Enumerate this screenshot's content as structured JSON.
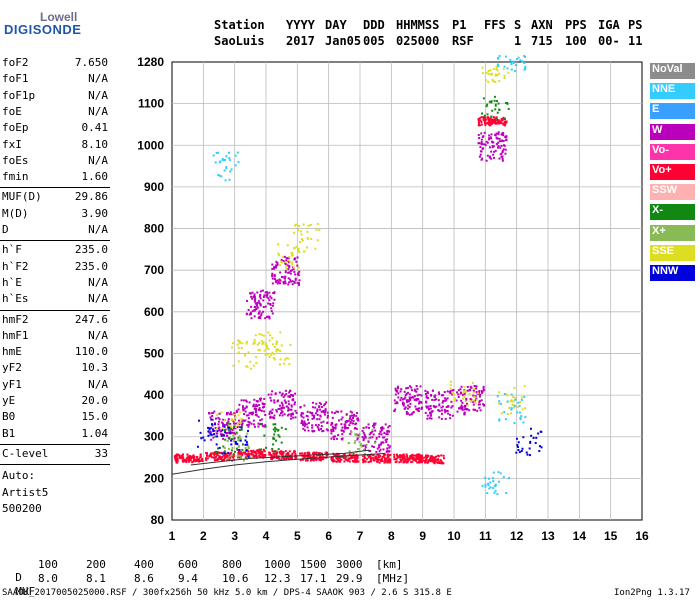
{
  "logo": {
    "line1": "Lowell",
    "line2": "DIGISONDE"
  },
  "header": {
    "cols": [
      {
        "k": "Station",
        "v": "SaoLuis"
      },
      {
        "k": "YYYY",
        "v": "2017"
      },
      {
        "k": "DAY",
        "v": "Jan05"
      },
      {
        "k": "DDD",
        "v": "005"
      },
      {
        "k": "HHMMSS",
        "v": "025000"
      },
      {
        "k": "P1",
        "v": "RSF"
      },
      {
        "k": "FFS",
        "v": ""
      },
      {
        "k": "S",
        "v": "1"
      },
      {
        "k": "AXN",
        "v": "715"
      },
      {
        "k": "PPS",
        "v": "100"
      },
      {
        "k": "IGA",
        "v": "00-"
      },
      {
        "k": "PS",
        "v": "11"
      }
    ]
  },
  "params": {
    "groupA": [
      {
        "k": "foF2",
        "v": "7.650"
      },
      {
        "k": "foF1",
        "v": "N/A"
      },
      {
        "k": "foF1p",
        "v": "N/A"
      },
      {
        "k": "foE",
        "v": "N/A"
      },
      {
        "k": "foEp",
        "v": "0.41"
      },
      {
        "k": "fxI",
        "v": "8.10"
      },
      {
        "k": "foEs",
        "v": "N/A"
      },
      {
        "k": "fmin",
        "v": "1.60"
      }
    ],
    "groupB": [
      {
        "k": "MUF(D)",
        "v": "29.86"
      },
      {
        "k": "M(D)",
        "v": "3.90"
      },
      {
        "k": "D",
        "v": "N/A"
      }
    ],
    "groupC": [
      {
        "k": "h`F",
        "v": "235.0"
      },
      {
        "k": "h`F2",
        "v": "235.0"
      },
      {
        "k": "h`E",
        "v": "N/A"
      },
      {
        "k": "h`Es",
        "v": "N/A"
      }
    ],
    "groupD": [
      {
        "k": "hmF2",
        "v": "247.6"
      },
      {
        "k": "hmF1",
        "v": "N/A"
      },
      {
        "k": "hmE",
        "v": "110.0"
      },
      {
        "k": "yF2",
        "v": "10.3"
      },
      {
        "k": "yF1",
        "v": "N/A"
      },
      {
        "k": "yE",
        "v": "20.0"
      },
      {
        "k": "B0",
        "v": "15.0"
      },
      {
        "k": "B1",
        "v": "1.04"
      }
    ],
    "clevel": {
      "k": "C-level",
      "v": "33"
    },
    "auto": [
      "Auto:",
      "Artist5",
      "500200"
    ]
  },
  "legend": [
    {
      "label": "NoVal",
      "color": "#8c8c8c"
    },
    {
      "label": "NNE",
      "color": "#33ccff"
    },
    {
      "label": "E",
      "color": "#3aa0ff"
    },
    {
      "label": "W",
      "color": "#bb00bb"
    },
    {
      "label": "Vo-",
      "color": "#ff33aa"
    },
    {
      "label": "Vo+",
      "color": "#ff0033"
    },
    {
      "label": "SSW",
      "color": "#ffb0b0"
    },
    {
      "label": "X-",
      "color": "#118811"
    },
    {
      "label": "X+",
      "color": "#88bb55"
    },
    {
      "label": "SSE",
      "color": "#dddd22"
    },
    {
      "label": "NNW",
      "color": "#0000dd"
    }
  ],
  "footer": {
    "row1_label": "D",
    "row1_values": [
      "100",
      "200",
      "400",
      "600",
      "800",
      "1000",
      "1500",
      "3000",
      "[km]"
    ],
    "row2_label": "MUF",
    "row2_values": [
      "8.0",
      "8.1",
      "8.6",
      "9.4",
      "10.6",
      "12.3",
      "17.1",
      "29.9",
      "[MHz]"
    ],
    "bottom_left": "SAAOK_2017005025000.RSF / 300fx256h 50 kHz 5.0 km / DPS-4 SAAOK 903 / 2.6 S 315.8 E",
    "bottom_right": "Ion2Png 1.3.17"
  },
  "chart_data": {
    "type": "scatter",
    "x_ticks": [
      1,
      2,
      3,
      4,
      5,
      6,
      7,
      8,
      9,
      10,
      11,
      12,
      13,
      14,
      15,
      16
    ],
    "y_ticks": [
      80,
      200,
      300,
      400,
      500,
      600,
      700,
      800,
      900,
      1000,
      1100,
      1280
    ],
    "xlim": [
      1,
      16
    ],
    "ylim": [
      80,
      1280
    ],
    "grid": true,
    "legend_position": "right",
    "series": [
      {
        "name": "W",
        "points": [
          [
            2.6,
            330
          ],
          [
            3.5,
            360
          ],
          [
            4.5,
            380
          ],
          [
            5.5,
            350
          ],
          [
            6.5,
            330
          ],
          [
            7.5,
            300
          ],
          [
            8.5,
            390
          ],
          [
            9.5,
            380
          ],
          [
            10.5,
            390
          ],
          [
            11.2,
            1000
          ],
          [
            3.8,
            620
          ],
          [
            4.6,
            700
          ]
        ]
      },
      {
        "name": "Vo+",
        "points": [
          [
            1.5,
            250
          ],
          [
            2.5,
            255
          ],
          [
            3.5,
            262
          ],
          [
            4.5,
            258
          ],
          [
            5.5,
            255
          ],
          [
            6.5,
            252
          ],
          [
            7.5,
            250
          ],
          [
            8.5,
            250
          ],
          [
            9.2,
            248
          ],
          [
            11.2,
            1060
          ]
        ]
      },
      {
        "name": "SSE",
        "points": [
          [
            3.3,
            500
          ],
          [
            4.3,
            510
          ],
          [
            4.8,
            740
          ],
          [
            5.3,
            780
          ],
          [
            2.8,
            330
          ],
          [
            4.0,
            520
          ],
          [
            10.3,
            400
          ],
          [
            11.8,
            390
          ],
          [
            11.3,
            1230
          ]
        ]
      },
      {
        "name": "NNE",
        "points": [
          [
            2.7,
            950
          ],
          [
            11.8,
            370
          ],
          [
            11.8,
            1280
          ],
          [
            11.3,
            185
          ]
        ]
      },
      {
        "name": "X-",
        "points": [
          [
            2.8,
            300
          ],
          [
            11.3,
            1100
          ],
          [
            4.2,
            300
          ]
        ]
      },
      {
        "name": "X+",
        "points": [
          [
            3.1,
            280
          ],
          [
            7.0,
            285
          ]
        ]
      },
      {
        "name": "NNW",
        "points": [
          [
            2.2,
            310
          ],
          [
            3.0,
            290
          ],
          [
            12.4,
            290
          ]
        ]
      }
    ],
    "trace_lines": [
      {
        "points": [
          [
            1.0,
            210
          ],
          [
            2.0,
            222
          ],
          [
            3.0,
            232
          ],
          [
            4.0,
            240
          ],
          [
            5.0,
            246
          ],
          [
            6.0,
            251
          ],
          [
            7.0,
            256
          ],
          [
            7.8,
            260
          ]
        ]
      },
      {
        "points": [
          [
            1.6,
            232
          ],
          [
            2.5,
            240
          ],
          [
            3.5,
            248
          ],
          [
            4.5,
            252
          ],
          [
            5.5,
            256
          ],
          [
            6.5,
            260
          ],
          [
            7.3,
            268
          ]
        ]
      }
    ]
  }
}
